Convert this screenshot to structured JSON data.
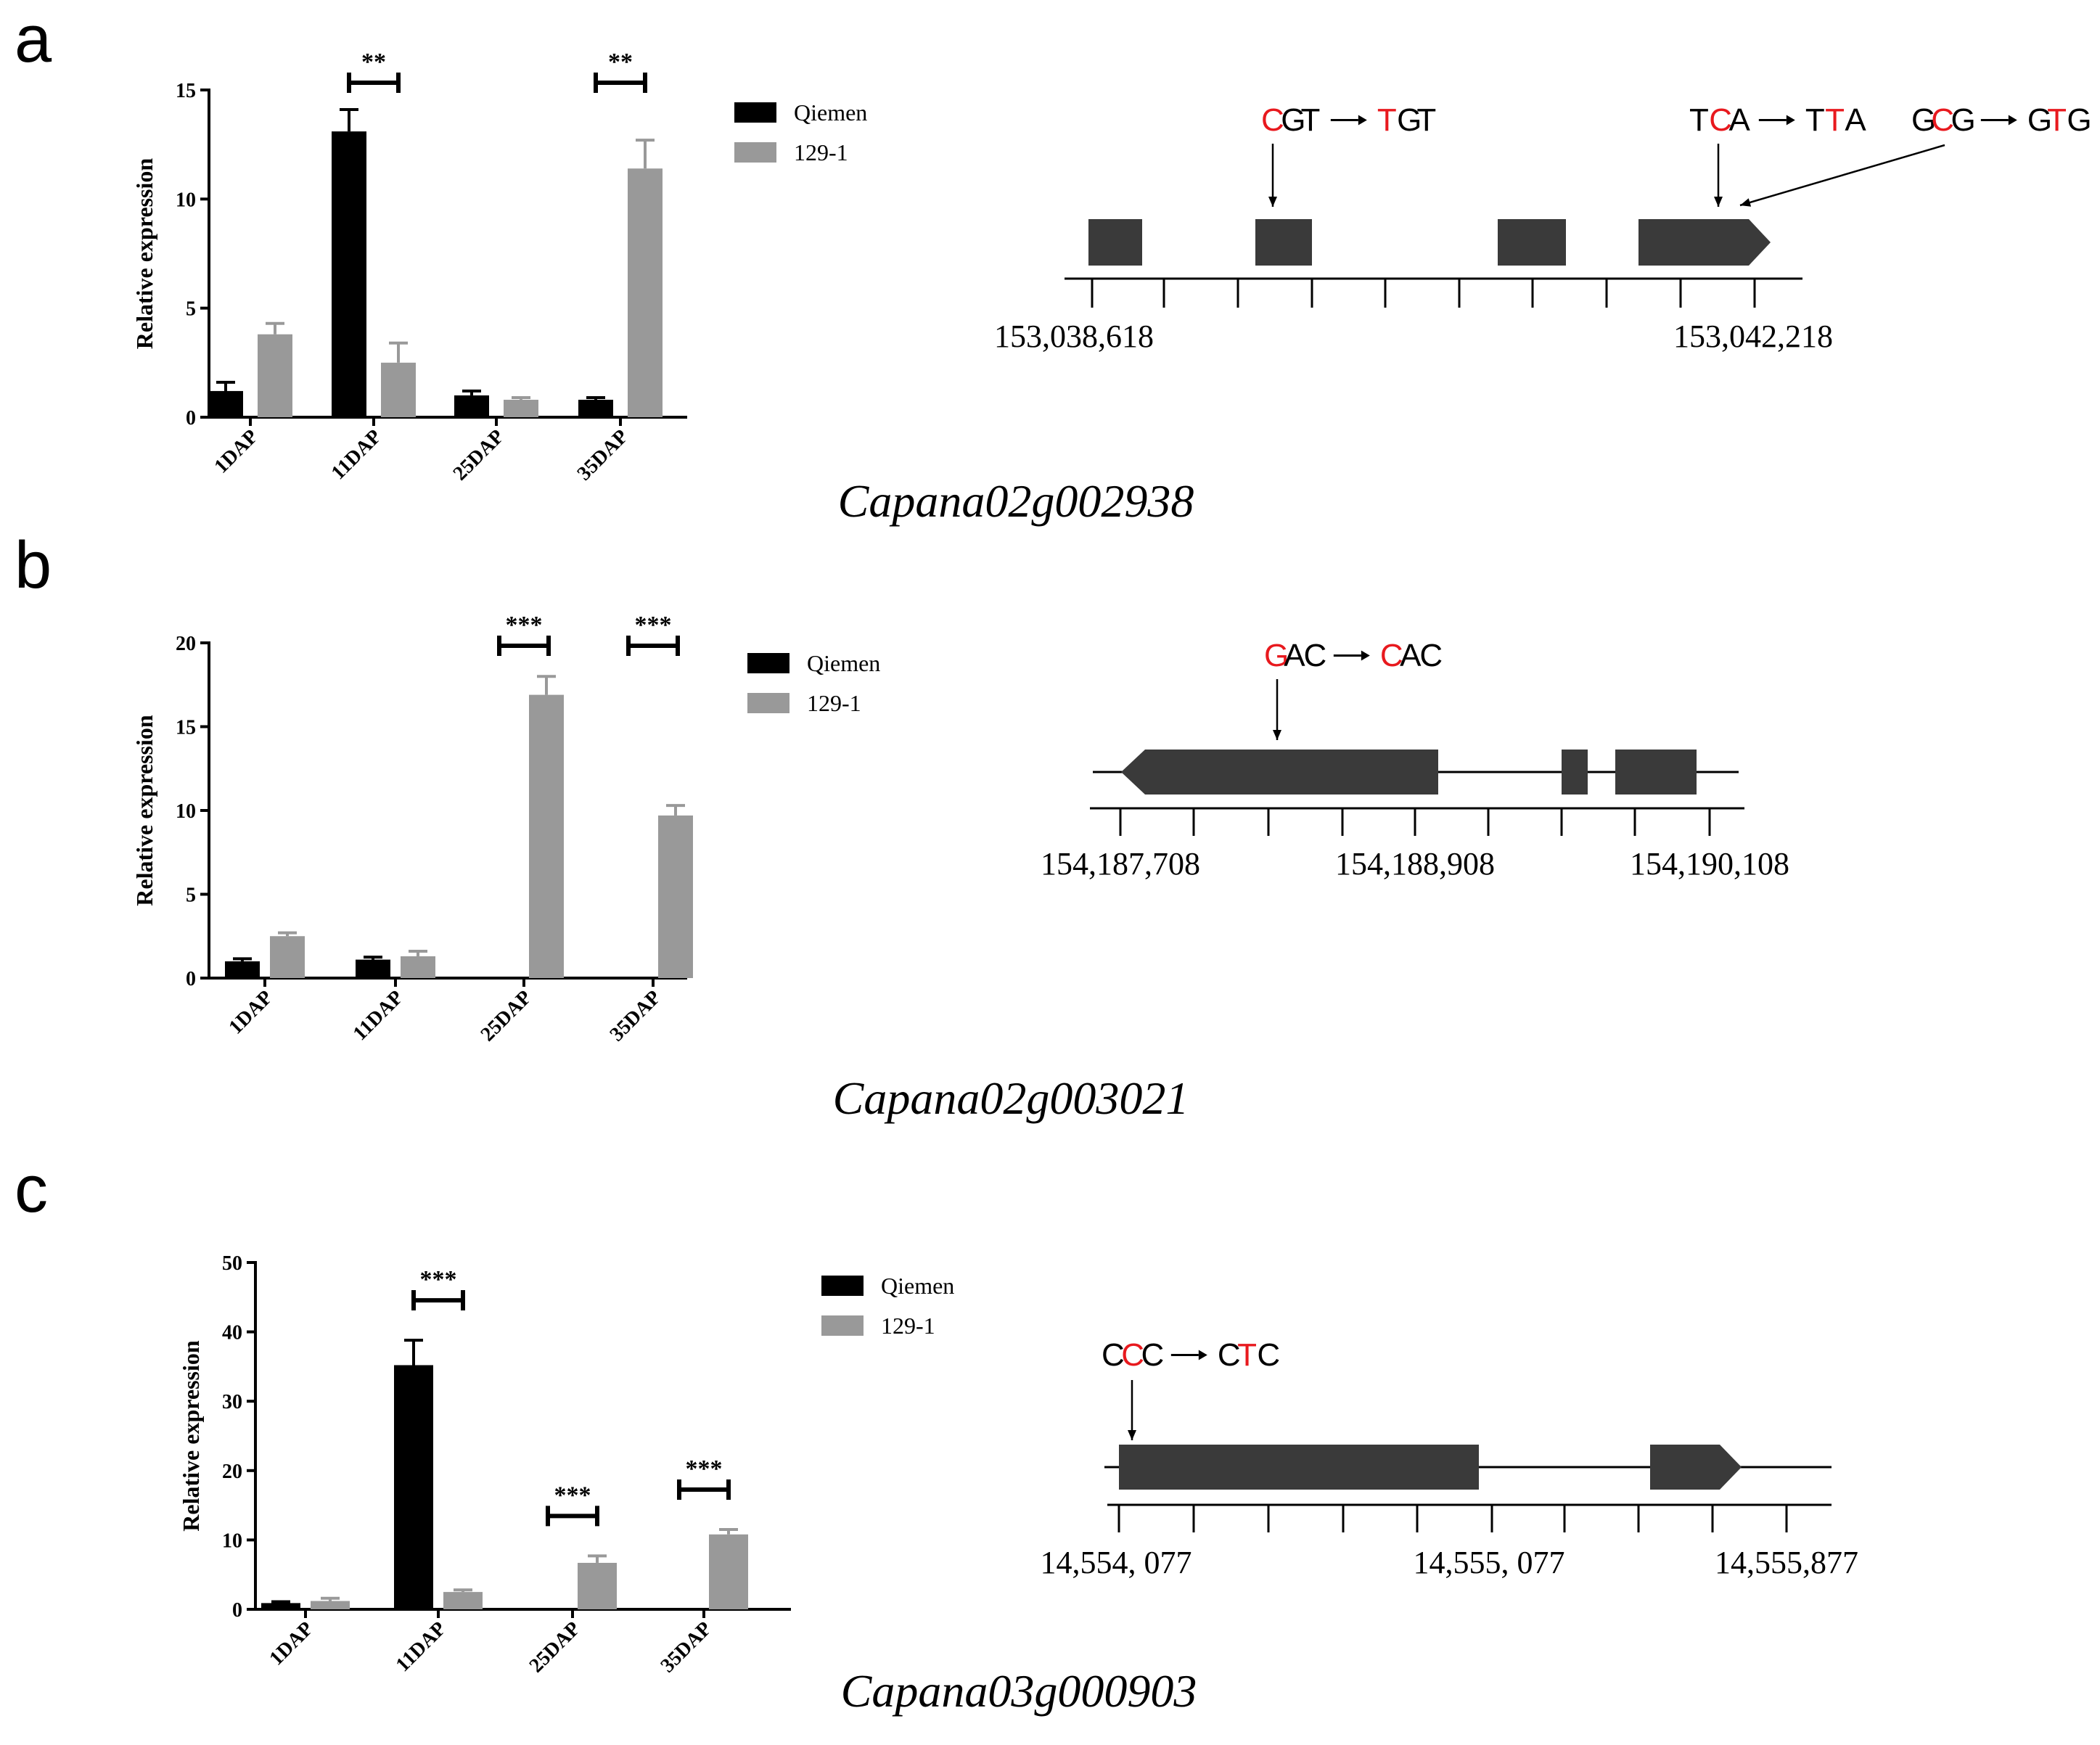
{
  "colors": {
    "qiemen": "#000000",
    "line_1291": "#999999",
    "feature": "#3a3a3a",
    "mutation": "#e8191e",
    "axis": "#000000"
  },
  "panels": [
    {
      "label": "a",
      "gene": "Capana02g002938",
      "chart": {
        "type": "bar",
        "categories": [
          "1DAP",
          "11DAP",
          "25DAP",
          "35DAP"
        ],
        "series": [
          {
            "name": "Qiemen",
            "values": [
              1.2,
              13.1,
              1.0,
              0.8
            ],
            "errors": [
              0.4,
              1.0,
              0.2,
              0.1
            ]
          },
          {
            "name": "129-1",
            "values": [
              3.8,
              2.5,
              0.8,
              11.4
            ],
            "errors": [
              0.5,
              0.9,
              0.1,
              1.3
            ]
          }
        ],
        "ylabel": "Relative expression",
        "ylim": [
          0,
          15
        ],
        "yticks": [
          0,
          5,
          10,
          15
        ],
        "significance": [
          {
            "category": "11DAP",
            "label": "**"
          },
          {
            "category": "35DAP",
            "label": "**"
          }
        ]
      },
      "structure": {
        "coords": [
          "153,038,618",
          "153,042,218"
        ],
        "mutations": [
          {
            "ref": [
              "C",
              "G",
              "T"
            ],
            "alt": [
              "T",
              "G",
              "T"
            ],
            "red": 0
          },
          {
            "ref": [
              "T",
              "C",
              "A"
            ],
            "alt": [
              "T",
              "T",
              "A"
            ],
            "red": 1
          },
          {
            "ref": [
              "G",
              "C",
              "G"
            ],
            "alt": [
              "G",
              "T",
              "G"
            ],
            "red": 1
          }
        ]
      }
    },
    {
      "label": "b",
      "gene": "Capana02g003021",
      "chart": {
        "type": "bar",
        "categories": [
          "1DAP",
          "11DAP",
          "25DAP",
          "35DAP"
        ],
        "series": [
          {
            "name": "Qiemen",
            "values": [
              1.0,
              1.1,
              0.05,
              0.05
            ],
            "errors": [
              0.15,
              0.15,
              0.0,
              0.0
            ]
          },
          {
            "name": "129-1",
            "values": [
              2.5,
              1.3,
              16.9,
              9.7
            ],
            "errors": [
              0.2,
              0.3,
              1.1,
              0.6
            ]
          }
        ],
        "ylabel": "Relative expression",
        "ylim": [
          0,
          20
        ],
        "yticks": [
          0,
          5,
          10,
          15,
          20
        ],
        "significance": [
          {
            "category": "25DAP",
            "label": "***"
          },
          {
            "category": "35DAP",
            "label": "***"
          }
        ]
      },
      "structure": {
        "coords": [
          "154,187,708",
          "154,188,908",
          "154,190,108"
        ],
        "mutations": [
          {
            "ref": [
              "G",
              "A",
              "C"
            ],
            "alt": [
              "C",
              "A",
              "C"
            ],
            "red": 0
          }
        ]
      }
    },
    {
      "label": "c",
      "gene": "Capana03g000903",
      "chart": {
        "type": "bar",
        "categories": [
          "1DAP",
          "11DAP",
          "25DAP",
          "35DAP"
        ],
        "series": [
          {
            "name": "Qiemen",
            "values": [
              0.9,
              35.2,
              0.0,
              0.0
            ],
            "errors": [
              0.2,
              3.6,
              0.0,
              0.0
            ]
          },
          {
            "name": "129-1",
            "values": [
              1.2,
              2.5,
              6.7,
              10.8
            ],
            "errors": [
              0.4,
              0.3,
              1.0,
              0.7
            ]
          }
        ],
        "ylabel": "Relative expression",
        "ylim": [
          0,
          50
        ],
        "yticks": [
          0,
          10,
          20,
          30,
          40,
          50
        ],
        "significance": [
          {
            "category": "11DAP",
            "label": "***"
          },
          {
            "category": "25DAP",
            "label": "***"
          },
          {
            "category": "35DAP",
            "label": "***"
          }
        ]
      },
      "structure": {
        "coords": [
          "14,554, 077",
          "14,555, 077",
          "14,555,877"
        ],
        "mutations": [
          {
            "ref": [
              "C",
              "C",
              "C"
            ],
            "alt": [
              "C",
              "T",
              "C"
            ],
            "red": 1
          }
        ]
      }
    }
  ]
}
